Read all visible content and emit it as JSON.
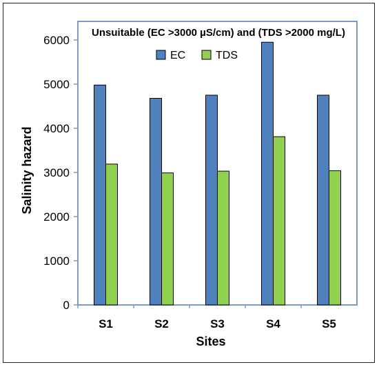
{
  "chart_data": {
    "type": "bar",
    "annotation": "Unsuitable (EC >3000 µS/cm) and (TDS >2000 mg/L)",
    "xlabel": "Sites",
    "ylabel": "Salinity hazard",
    "categories": [
      "S1",
      "S2",
      "S3",
      "S4",
      "S5"
    ],
    "ylim": [
      0,
      6000
    ],
    "yticks": [
      0,
      1000,
      2000,
      3000,
      4000,
      5000,
      6000
    ],
    "grid": false,
    "legend_position": "top-center",
    "series": [
      {
        "name": "EC",
        "color": "#4f81bd",
        "values": [
          4980,
          4680,
          4750,
          5950,
          4750
        ]
      },
      {
        "name": "TDS",
        "color": "#92d050",
        "values": [
          3190,
          2990,
          3030,
          3810,
          3040
        ]
      }
    ]
  }
}
